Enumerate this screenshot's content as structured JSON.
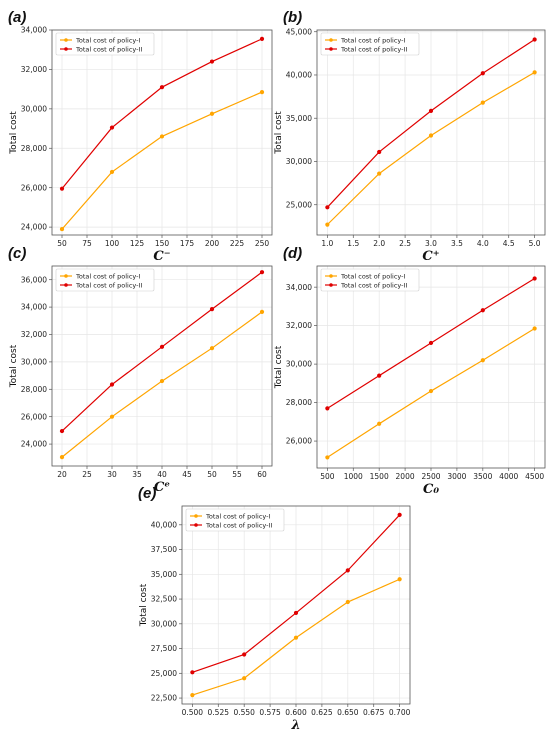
{
  "colors": {
    "policy_1": "#FFA500",
    "policy_2": "#E00000",
    "grid": "#e6e6e6",
    "axis": "#555555"
  },
  "chart_data": [
    {
      "type": "line",
      "panel_label": "(a)",
      "xlabel": "C⁻",
      "ylabel": "Total cost",
      "x": [
        50,
        100,
        150,
        200,
        250
      ],
      "xticks": [
        "50",
        "75",
        "100",
        "125",
        "150",
        "175",
        "200",
        "225",
        "250"
      ],
      "xtick_values": [
        50,
        75,
        100,
        125,
        150,
        175,
        200,
        225,
        250
      ],
      "yticks": [
        "24,000",
        "26,000",
        "28,000",
        "30,000",
        "32,000",
        "34,000"
      ],
      "ytick_values": [
        24000,
        26000,
        28000,
        30000,
        32000,
        34000
      ],
      "xlim": [
        40,
        260
      ],
      "ylim": [
        23600,
        34000
      ],
      "grid": true,
      "legend_position": "upper-left",
      "series": [
        {
          "name": "Total cost of policy-I",
          "color": "#FFA500",
          "values": [
            23900,
            26800,
            28600,
            29750,
            30850
          ]
        },
        {
          "name": "Total cost of policy-II",
          "color": "#E00000",
          "values": [
            25950,
            29050,
            31100,
            32400,
            33550
          ]
        }
      ]
    },
    {
      "type": "line",
      "panel_label": "(b)",
      "xlabel": "C⁺",
      "ylabel": "Total cost",
      "x": [
        1.0,
        2.0,
        3.0,
        4.0,
        5.0
      ],
      "xticks": [
        "1.0",
        "1.5",
        "2.0",
        "2.5",
        "3.0",
        "3.5",
        "4.0",
        "4.5",
        "5.0"
      ],
      "xtick_values": [
        1.0,
        1.5,
        2.0,
        2.5,
        3.0,
        3.5,
        4.0,
        4.5,
        5.0
      ],
      "yticks": [
        "25,000",
        "30,000",
        "35,000",
        "40,000",
        "45,000"
      ],
      "ytick_values": [
        25000,
        30000,
        35000,
        40000,
        45000
      ],
      "xlim": [
        0.8,
        5.2
      ],
      "ylim": [
        21500,
        45200
      ],
      "grid": true,
      "legend_position": "upper-left",
      "series": [
        {
          "name": "Total cost of policy-I",
          "color": "#FFA500",
          "values": [
            22700,
            28600,
            33000,
            36800,
            40300
          ]
        },
        {
          "name": "Total cost of policy-II",
          "color": "#E00000",
          "values": [
            24700,
            31100,
            35850,
            40200,
            44100
          ]
        }
      ]
    },
    {
      "type": "line",
      "panel_label": "(c)",
      "xlabel": "Cᵉ",
      "ylabel": "Total cost",
      "x": [
        20,
        30,
        40,
        50,
        60
      ],
      "xticks": [
        "20",
        "25",
        "30",
        "35",
        "40",
        "45",
        "50",
        "55",
        "60"
      ],
      "xtick_values": [
        20,
        25,
        30,
        35,
        40,
        45,
        50,
        55,
        60
      ],
      "yticks": [
        "24,000",
        "26,000",
        "28,000",
        "30,000",
        "32,000",
        "34,000",
        "36,000"
      ],
      "ytick_values": [
        24000,
        26000,
        28000,
        30000,
        32000,
        34000,
        36000
      ],
      "xlim": [
        18,
        62
      ],
      "ylim": [
        22400,
        37000
      ],
      "grid": true,
      "legend_position": "upper-left",
      "series": [
        {
          "name": "Total cost of policy-I",
          "color": "#FFA500",
          "values": [
            23050,
            26000,
            28600,
            31000,
            33650
          ]
        },
        {
          "name": "Total cost of policy-II",
          "color": "#E00000",
          "values": [
            24950,
            28350,
            31100,
            33850,
            36550
          ]
        }
      ]
    },
    {
      "type": "line",
      "panel_label": "(d)",
      "xlabel": "C₀",
      "ylabel": "Total cost",
      "x": [
        500,
        1500,
        2500,
        3500,
        4500
      ],
      "xticks": [
        "500",
        "1000",
        "1500",
        "2000",
        "2500",
        "3000",
        "3500",
        "4000",
        "4500"
      ],
      "xtick_values": [
        500,
        1000,
        1500,
        2000,
        2500,
        3000,
        3500,
        4000,
        4500
      ],
      "yticks": [
        "26,000",
        "28,000",
        "30,000",
        "32,000",
        "34,000"
      ],
      "ytick_values": [
        26000,
        28000,
        30000,
        32000,
        34000
      ],
      "xlim": [
        300,
        4700
      ],
      "ylim": [
        24600,
        35100
      ],
      "grid": true,
      "legend_position": "upper-left",
      "series": [
        {
          "name": "Total cost of policy-I",
          "color": "#FFA500",
          "values": [
            25150,
            26900,
            28600,
            30200,
            31850
          ]
        },
        {
          "name": "Total cost of policy-II",
          "color": "#E00000",
          "values": [
            27700,
            29400,
            31100,
            32800,
            34450
          ]
        }
      ]
    },
    {
      "type": "line",
      "panel_label": "(e)",
      "xlabel": "λ",
      "ylabel": "Total cost",
      "x": [
        0.5,
        0.55,
        0.6,
        0.65,
        0.7
      ],
      "xticks": [
        "0.500",
        "0.525",
        "0.550",
        "0.575",
        "0.600",
        "0.625",
        "0.650",
        "0.675",
        "0.700"
      ],
      "xtick_values": [
        0.5,
        0.525,
        0.55,
        0.575,
        0.6,
        0.625,
        0.65,
        0.675,
        0.7
      ],
      "yticks": [
        "22,500",
        "25,000",
        "27,500",
        "30,000",
        "32,500",
        "35,000",
        "37,500",
        "40,000"
      ],
      "ytick_values": [
        22500,
        25000,
        27500,
        30000,
        32500,
        35000,
        37500,
        40000
      ],
      "xlim": [
        0.49,
        0.71
      ],
      "ylim": [
        21900,
        41900
      ],
      "grid": true,
      "legend_position": "upper-left",
      "series": [
        {
          "name": "Total cost of policy-I",
          "color": "#FFA500",
          "values": [
            22800,
            24500,
            28600,
            32200,
            34500
          ]
        },
        {
          "name": "Total cost of policy-II",
          "color": "#E00000",
          "values": [
            25100,
            26900,
            31100,
            35400,
            41000
          ]
        }
      ]
    }
  ]
}
